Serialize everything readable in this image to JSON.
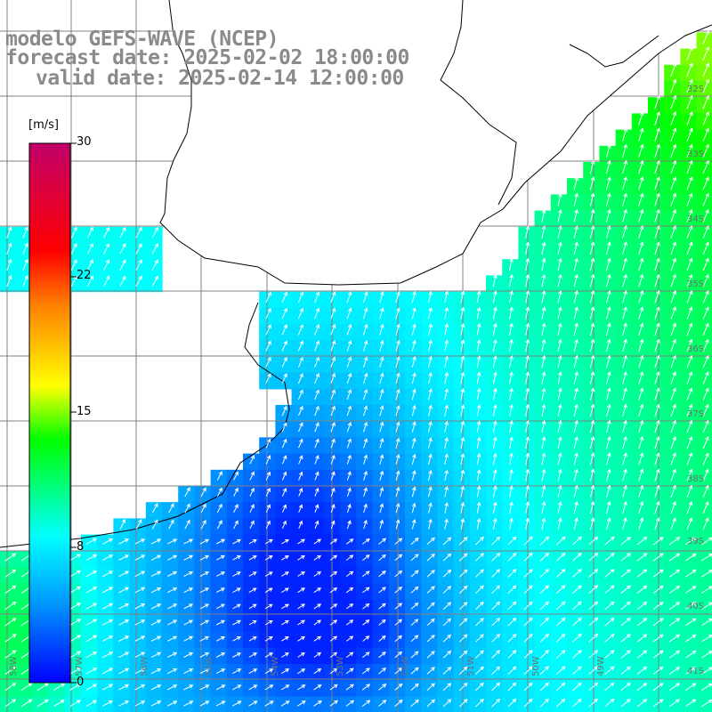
{
  "header": {
    "model": "modelo GEFS-WAVE (NCEP)",
    "forecast": "forecast date: 2025-02-02 18:00:00",
    "valid": "valid date: 2025-02-14 12:00:00"
  },
  "colorbar": {
    "unit": "[m/s]",
    "labels": [
      "30",
      "22",
      "15",
      "8",
      "0"
    ],
    "values": [
      30,
      22,
      15,
      8,
      0
    ],
    "range": [
      0,
      30
    ],
    "colors": [
      "#0000ff",
      "#0090ff",
      "#00ffff",
      "#00ff00",
      "#ffff00",
      "#ff8000",
      "#ff0000",
      "#c0006a"
    ]
  },
  "map": {
    "lat_labels": [
      "32S",
      "33S",
      "34S",
      "35S",
      "36S",
      "37S",
      "38S",
      "39S",
      "40S",
      "41S"
    ],
    "lon_labels": [
      "58W",
      "57W",
      "56W",
      "55W",
      "54W",
      "53W",
      "52W",
      "51W",
      "50W",
      "49W"
    ],
    "wind_direction": "southwesterly"
  }
}
